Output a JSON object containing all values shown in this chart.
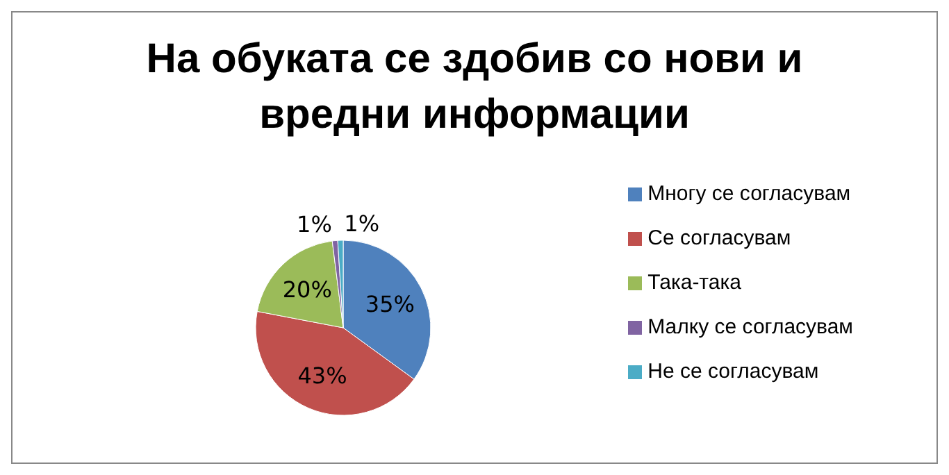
{
  "chart_data": {
    "type": "pie",
    "title": "На обуката се здобив со нови и вредни информации",
    "categories": [
      "Многу се согласувам",
      "Се согласувам",
      "Така-така",
      "Малку се согласувам",
      "Не се согласувам"
    ],
    "values": [
      35,
      43,
      20,
      1,
      1
    ],
    "colors": [
      "#4f81bd",
      "#c0504d",
      "#9bbb59",
      "#8064a2",
      "#4bacc6"
    ],
    "value_labels": [
      "35%",
      "43%",
      "20%",
      "1%",
      "1%"
    ],
    "legend": "right"
  }
}
